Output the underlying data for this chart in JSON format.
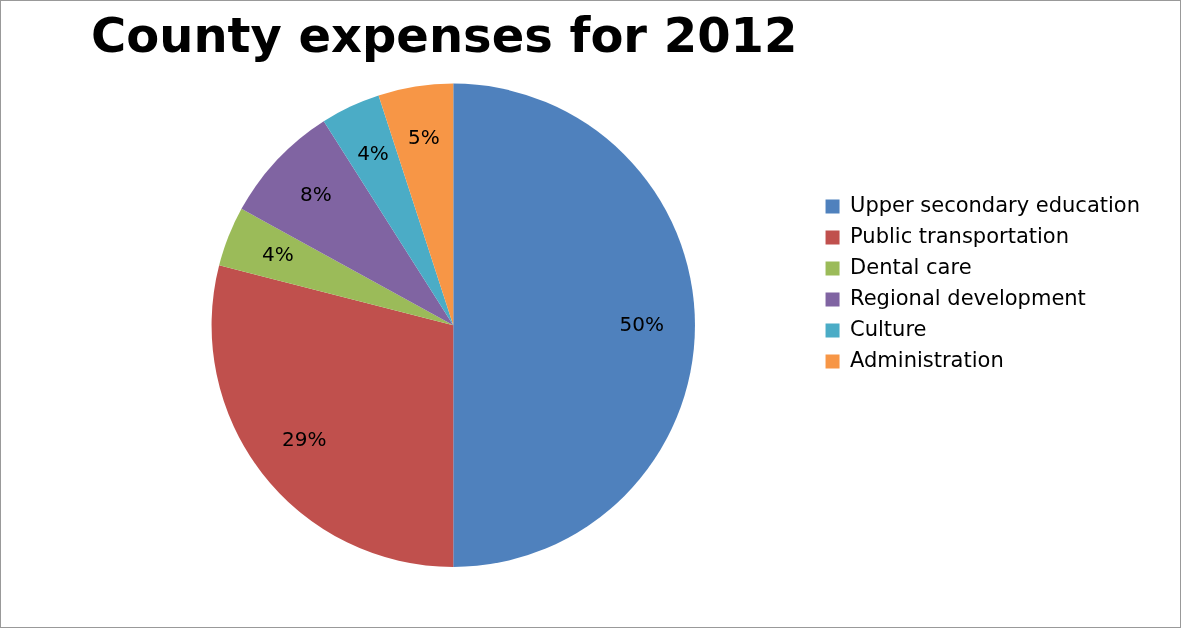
{
  "chart_data": {
    "type": "pie",
    "title": "County expenses for 2012",
    "categories": [
      "Upper secondary education",
      "Public transportation",
      "Dental care",
      "Regional development",
      "Culture",
      "Administration"
    ],
    "values": [
      50,
      29,
      4,
      8,
      4,
      5
    ],
    "value_labels": [
      "50%",
      "29%",
      "4%",
      "8%",
      "4%",
      "5%"
    ],
    "colors": [
      "#4f81bd",
      "#c0504d",
      "#9bbb59",
      "#8064a2",
      "#4bacc6",
      "#f79646"
    ],
    "legend": "right"
  }
}
